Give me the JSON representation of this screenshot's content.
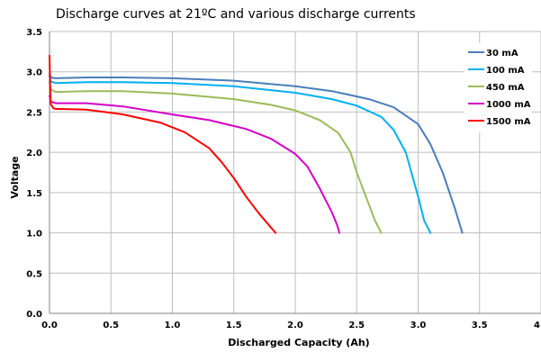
{
  "chart_data": {
    "type": "line",
    "title": "Discharge curves at 21ºC and various discharge currents",
    "xlabel": "Discharged Capacity (Ah)",
    "ylabel": "Voltage",
    "xlim": [
      0,
      4
    ],
    "ylim": [
      0,
      3.5
    ],
    "x_ticks": [
      "0.0",
      "0.5",
      "1.0",
      "1.5",
      "2.0",
      "2.5",
      "3.0",
      "3.5",
      "4"
    ],
    "y_ticks": [
      "0.0",
      "0.5",
      "1.0",
      "1.5",
      "2.0",
      "2.5",
      "3.0",
      "3.5"
    ],
    "grid": true,
    "legend_position": "top-right",
    "series": [
      {
        "name": "30 mA",
        "color": "#4a7ebb",
        "x": [
          0,
          0.01,
          0.05,
          0.3,
          0.6,
          1.0,
          1.5,
          2.0,
          2.3,
          2.6,
          2.8,
          3.0,
          3.1,
          3.2,
          3.3,
          3.36
        ],
        "y": [
          2.98,
          2.93,
          2.92,
          2.93,
          2.93,
          2.92,
          2.89,
          2.82,
          2.76,
          2.66,
          2.56,
          2.35,
          2.1,
          1.75,
          1.3,
          1.0
        ]
      },
      {
        "name": "100 mA",
        "color": "#00b0f0",
        "x": [
          0,
          0.01,
          0.05,
          0.3,
          0.6,
          1.0,
          1.5,
          2.0,
          2.3,
          2.5,
          2.7,
          2.8,
          2.9,
          3.0,
          3.05,
          3.1
        ],
        "y": [
          2.95,
          2.88,
          2.86,
          2.87,
          2.87,
          2.86,
          2.82,
          2.74,
          2.66,
          2.58,
          2.44,
          2.28,
          2.0,
          1.45,
          1.15,
          1.0
        ]
      },
      {
        "name": "450 mA",
        "color": "#9bbb59",
        "x": [
          0,
          0.01,
          0.05,
          0.3,
          0.6,
          1.0,
          1.5,
          1.8,
          2.0,
          2.2,
          2.35,
          2.45,
          2.5,
          2.55,
          2.6,
          2.65,
          2.7
        ],
        "y": [
          2.88,
          2.78,
          2.75,
          2.76,
          2.76,
          2.73,
          2.66,
          2.59,
          2.52,
          2.4,
          2.24,
          2.0,
          1.75,
          1.55,
          1.35,
          1.15,
          1.0
        ]
      },
      {
        "name": "1000 mA",
        "color": "#d400c8",
        "x": [
          0,
          0.01,
          0.05,
          0.3,
          0.6,
          1.0,
          1.3,
          1.6,
          1.8,
          2.0,
          2.1,
          2.2,
          2.25,
          2.3,
          2.34,
          2.36
        ],
        "y": [
          2.7,
          2.63,
          2.61,
          2.61,
          2.57,
          2.47,
          2.4,
          2.29,
          2.17,
          1.98,
          1.82,
          1.55,
          1.4,
          1.25,
          1.1,
          1.0
        ]
      },
      {
        "name": "1500 mA",
        "color": "#ff0000",
        "x": [
          0,
          0.005,
          0.01,
          0.03,
          0.05,
          0.3,
          0.6,
          0.9,
          1.1,
          1.3,
          1.4,
          1.5,
          1.6,
          1.7,
          1.8,
          1.84
        ],
        "y": [
          3.2,
          2.8,
          2.6,
          2.55,
          2.54,
          2.53,
          2.47,
          2.37,
          2.25,
          2.05,
          1.88,
          1.68,
          1.45,
          1.25,
          1.07,
          1.0
        ]
      }
    ]
  }
}
